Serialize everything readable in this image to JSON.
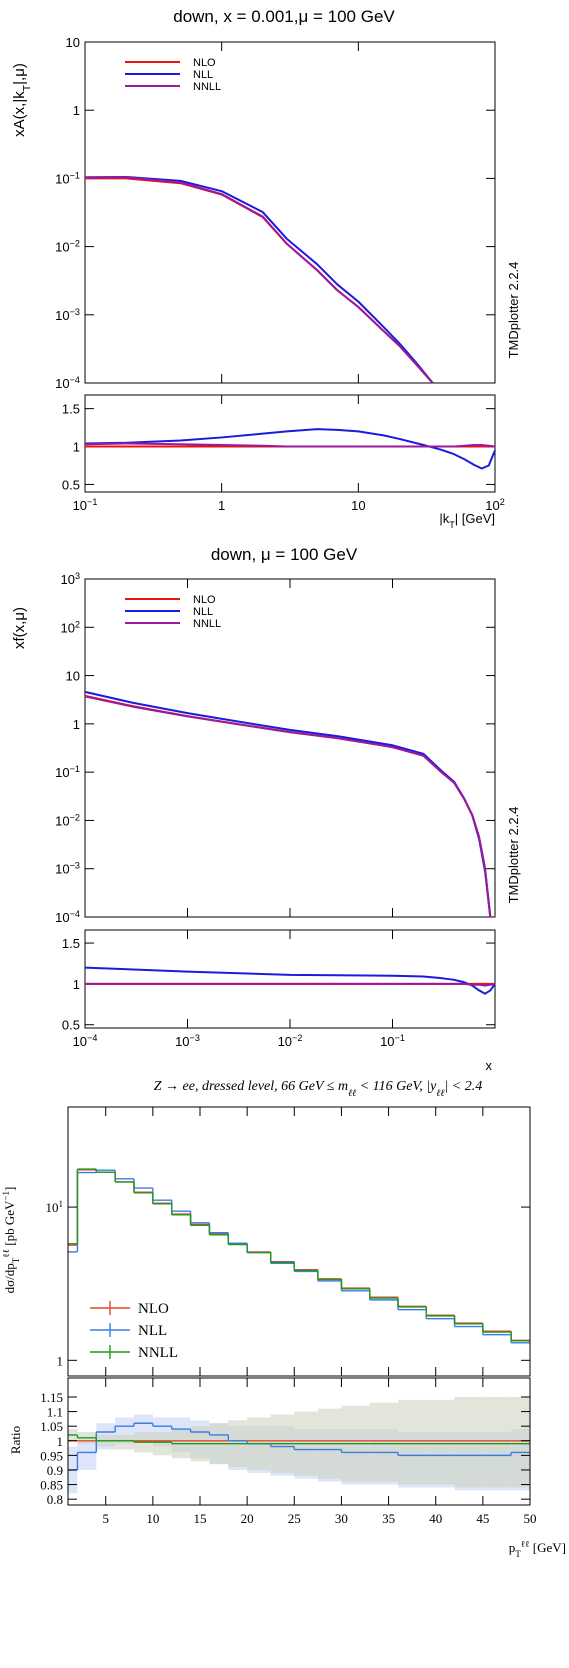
{
  "chart_data": [
    {
      "type": "line",
      "title": "down, x = 0.001,μ = 100 GeV",
      "y_label": [
        {
          "t": "xA(x,|k"
        },
        {
          "t": "T",
          "s": "sub"
        },
        {
          "t": "|,μ)"
        }
      ],
      "x_label": [
        {
          "t": "|k"
        },
        {
          "t": "T",
          "s": "sub"
        },
        {
          "t": "| [GeV]"
        }
      ],
      "side_text": "TMDplotter 2.2.4",
      "log_x": true,
      "log_y": true,
      "legend": "upper left",
      "xlim": [
        0.1,
        100
      ],
      "xticks": [
        {
          "value": 0.1,
          "label": "10",
          "exponent": "−1"
        },
        1,
        10,
        {
          "value": 100,
          "label": "10",
          "exponent": "2"
        }
      ],
      "ylim": [
        0.0001,
        10
      ],
      "yticks": [
        {
          "value": 0.0001,
          "label": "10",
          "exponent": "−4"
        },
        {
          "value": 0.001,
          "label": "10",
          "exponent": "−3"
        },
        {
          "value": 0.01,
          "label": "10",
          "exponent": "−2"
        },
        {
          "value": 0.1,
          "label": "10",
          "exponent": "−1"
        },
        1,
        10
      ],
      "x": [
        0.1,
        0.2,
        0.5,
        1,
        2,
        3,
        5,
        7,
        10,
        15,
        20,
        27,
        35
      ],
      "series": [
        {
          "name": "NLO",
          "color": "#ee1111",
          "values": [
            0.1,
            0.1,
            0.085,
            0.058,
            0.027,
            0.011,
            0.0045,
            0.0023,
            0.0013,
            0.0006,
            0.00035,
            0.00018,
            0.0001
          ]
        },
        {
          "name": "NLL",
          "color": "#1a1ae0",
          "values": [
            0.104,
            0.105,
            0.092,
            0.065,
            0.032,
            0.013,
            0.0055,
            0.0028,
            0.00156,
            0.00069,
            0.00038,
            0.00019,
            0.0001
          ]
        },
        {
          "name": "NNLL",
          "color": "#9b1a9b",
          "values": [
            0.103,
            0.104,
            0.087,
            0.059,
            0.0275,
            0.011,
            0.0045,
            0.0023,
            0.0013,
            0.0006,
            0.00035,
            0.00018,
            0.0001
          ]
        }
      ],
      "ratio": {
        "ylim": [
          0.4,
          1.68
        ],
        "yticks": [
          0.5,
          1,
          1.5
        ],
        "x": [
          0.1,
          0.2,
          0.5,
          1,
          2,
          3,
          5,
          7,
          10,
          15,
          20,
          30,
          40,
          50,
          60,
          70,
          80,
          90,
          100
        ],
        "series": [
          {
            "color": "#ee1111",
            "values": [
              1,
              1,
              1,
              1,
              1,
              1,
              1,
              1,
              1,
              1,
              1,
              1,
              1,
              1,
              1,
              1,
              1,
              1,
              1
            ]
          },
          {
            "color": "#1a1ae0",
            "values": [
              1.04,
              1.05,
              1.08,
              1.12,
              1.17,
              1.2,
              1.23,
              1.22,
              1.2,
              1.15,
              1.1,
              1.02,
              0.96,
              0.9,
              0.83,
              0.76,
              0.71,
              0.75,
              0.95
            ]
          },
          {
            "color": "#9b1a9b",
            "values": [
              1.03,
              1.04,
              1.03,
              1.02,
              1.01,
              1.0,
              1.0,
              1.0,
              1.0,
              1.0,
              1.0,
              1.0,
              1.0,
              1.0,
              1.01,
              1.02,
              1.02,
              1.01,
              1.0
            ]
          }
        ]
      }
    },
    {
      "type": "line",
      "title": "down, μ = 100 GeV",
      "y_label": [
        {
          "t": "xf(x,μ)"
        }
      ],
      "x_label": [
        {
          "t": "x"
        }
      ],
      "side_text": "TMDplotter 2.2.4",
      "log_x": true,
      "log_y": true,
      "legend": "upper left",
      "xlim": [
        0.0001,
        1
      ],
      "xticks": [
        {
          "value": 0.0001,
          "label": "10",
          "exponent": "−4"
        },
        {
          "value": 0.001,
          "label": "10",
          "exponent": "−3"
        },
        {
          "value": 0.01,
          "label": "10",
          "exponent": "−2"
        },
        {
          "value": 0.1,
          "label": "10",
          "exponent": "−1"
        }
      ],
      "ylim": [
        0.0001,
        1000
      ],
      "yticks": [
        {
          "value": 0.0001,
          "label": "10",
          "exponent": "−4"
        },
        {
          "value": 0.001,
          "label": "10",
          "exponent": "−3"
        },
        {
          "value": 0.01,
          "label": "10",
          "exponent": "−2"
        },
        {
          "value": 0.1,
          "label": "10",
          "exponent": "−1"
        },
        1,
        10,
        {
          "value": 100,
          "label": "10",
          "exponent": "2"
        },
        {
          "value": 1000,
          "label": "10",
          "exponent": "3"
        }
      ],
      "x": [
        0.0001,
        0.0003,
        0.001,
        0.003,
        0.01,
        0.03,
        0.1,
        0.2,
        0.3,
        0.4,
        0.5,
        0.6,
        0.7,
        0.8,
        0.9
      ],
      "series": [
        {
          "name": "NLO",
          "color": "#ee1111",
          "values": [
            3.8,
            2.3,
            1.45,
            1.0,
            0.68,
            0.5,
            0.33,
            0.22,
            0.1,
            0.06,
            0.028,
            0.013,
            0.0045,
            0.001,
            0.0001
          ]
        },
        {
          "name": "NLL",
          "color": "#1a1ae0",
          "values": [
            4.6,
            2.7,
            1.67,
            1.13,
            0.75,
            0.55,
            0.36,
            0.24,
            0.107,
            0.063,
            0.0286,
            0.0127,
            0.0041,
            0.00088,
            0.0001
          ]
        },
        {
          "name": "NNLL",
          "color": "#9b1a9b",
          "values": [
            3.7,
            2.25,
            1.43,
            0.99,
            0.67,
            0.5,
            0.33,
            0.22,
            0.1,
            0.06,
            0.028,
            0.013,
            0.0045,
            0.001,
            0.0001
          ]
        }
      ],
      "ratio": {
        "ylim": [
          0.46,
          1.66
        ],
        "yticks": [
          0.5,
          1,
          1.5
        ],
        "x": [
          0.0001,
          0.001,
          0.01,
          0.1,
          0.2,
          0.3,
          0.4,
          0.5,
          0.6,
          0.7,
          0.8,
          0.9,
          1
        ],
        "series": [
          {
            "color": "#ee1111",
            "values": [
              1,
              1,
              1,
              1,
              1,
              1,
              1,
              1,
              1,
              1,
              1,
              1,
              1
            ]
          },
          {
            "color": "#1a1ae0",
            "values": [
              1.2,
              1.15,
              1.11,
              1.1,
              1.09,
              1.07,
              1.05,
              1.02,
              0.98,
              0.92,
              0.88,
              0.92,
              1.0
            ]
          },
          {
            "color": "#9b1a9b",
            "values": [
              1,
              1,
              1,
              1,
              1,
              1,
              1,
              1,
              0.99,
              0.99,
              0.98,
              0.99,
              1.0
            ]
          }
        ]
      }
    },
    {
      "type": "histogram",
      "title": [
        {
          "t": "Z → ee, dressed level, 66 GeV ≤ m"
        },
        {
          "t": "ℓℓ",
          "s": "sub"
        },
        {
          "t": " < 116 GeV, |y"
        },
        {
          "t": "ℓℓ",
          "s": "sub"
        },
        {
          "t": "| < 2.4"
        }
      ],
      "y_label": [
        {
          "t": "dσ/dp"
        },
        {
          "t": "T",
          "s": "sub"
        },
        {
          "t": "ℓℓ",
          "s": "sup"
        },
        {
          "t": " [pb GeV"
        },
        {
          "t": "−1",
          "s": "sup"
        },
        {
          "t": "]"
        }
      ],
      "x_label": [
        {
          "t": "p"
        },
        {
          "t": "T",
          "s": "sub"
        },
        {
          "t": "ℓℓ",
          "s": "sup"
        },
        {
          "t": " [GeV]"
        }
      ],
      "log_x": false,
      "log_y": true,
      "legend": "lower left",
      "xlim": [
        1,
        50
      ],
      "xticks": [
        5,
        10,
        15,
        20,
        25,
        30,
        35,
        40,
        45,
        50
      ],
      "ylim": [
        0.79,
        45
      ],
      "yticks": [
        1,
        {
          "value": 10,
          "label": "10",
          "exponent": "1"
        }
      ],
      "bins": [
        1,
        2,
        4,
        6,
        8,
        10,
        12,
        14,
        16,
        18,
        20,
        22.5,
        25,
        27.5,
        30,
        33,
        36,
        39,
        42,
        45,
        48,
        50
      ],
      "series": [
        {
          "name": "NLO",
          "color": "#e8452c",
          "values": [
            5.65,
            17.5,
            16.9,
            14.6,
            12.5,
            10.6,
            9.0,
            7.7,
            6.7,
            5.8,
            5.1,
            4.4,
            3.9,
            3.4,
            2.96,
            2.58,
            2.25,
            1.97,
            1.75,
            1.55,
            1.35
          ]
        },
        {
          "name": "NLL",
          "color": "#3c7be6",
          "values": [
            5.1,
            16.8,
            17.4,
            15.3,
            13.3,
            11.1,
            9.4,
            7.9,
            6.8,
            5.8,
            5.05,
            4.3,
            3.8,
            3.3,
            2.84,
            2.48,
            2.14,
            1.87,
            1.66,
            1.47,
            1.3
          ]
        },
        {
          "name": "NNLL",
          "color": "#1e9a1e",
          "values": [
            5.76,
            17.7,
            16.9,
            14.6,
            12.4,
            10.5,
            8.9,
            7.6,
            6.6,
            5.7,
            5.05,
            4.36,
            3.86,
            3.37,
            2.93,
            2.55,
            2.23,
            1.95,
            1.73,
            1.53,
            1.34
          ]
        }
      ],
      "ratio": {
        "y_label": "Ratio",
        "ylim": [
          0.78,
          1.215
        ],
        "yticks": [
          0.8,
          0.85,
          0.9,
          0.95,
          1,
          1.05,
          1.1,
          1.15
        ],
        "series": [
          {
            "color": "#e8452c",
            "values": [
              1,
              1,
              1,
              1,
              1,
              1,
              1,
              1,
              1,
              1,
              1,
              1,
              1,
              1,
              1,
              1,
              1,
              1,
              1,
              1,
              1
            ]
          },
          {
            "color": "#3c7be6",
            "band_color": "#c6d6f4",
            "values": [
              0.9,
              0.96,
              1.03,
              1.05,
              1.06,
              1.05,
              1.04,
              1.03,
              1.02,
              1.0,
              0.99,
              0.98,
              0.97,
              0.97,
              0.96,
              0.96,
              0.95,
              0.95,
              0.95,
              0.95,
              0.96
            ],
            "lower": [
              0.82,
              0.9,
              0.97,
              0.99,
              1.0,
              0.98,
              0.96,
              0.94,
              0.92,
              0.9,
              0.89,
              0.88,
              0.87,
              0.86,
              0.85,
              0.85,
              0.84,
              0.84,
              0.83,
              0.83,
              0.83
            ],
            "upper": [
              0.98,
              1.0,
              1.06,
              1.08,
              1.09,
              1.08,
              1.08,
              1.07,
              1.06,
              1.05,
              1.05,
              1.05,
              1.04,
              1.04,
              1.04,
              1.04,
              1.03,
              1.03,
              1.03,
              1.03,
              1.04
            ]
          },
          {
            "color": "#1e9a1e",
            "band_color": "#cfd3c2",
            "values": [
              1.02,
              1.01,
              1.0,
              1.0,
              0.995,
              0.995,
              0.99,
              0.99,
              0.99,
              0.99,
              0.99,
              0.99,
              0.99,
              0.99,
              0.99,
              0.99,
              0.99,
              0.99,
              0.99,
              0.99,
              0.99
            ],
            "lower": [
              1.0,
              0.99,
              0.98,
              0.97,
              0.96,
              0.95,
              0.94,
              0.93,
              0.92,
              0.91,
              0.9,
              0.89,
              0.88,
              0.87,
              0.86,
              0.86,
              0.85,
              0.85,
              0.84,
              0.84,
              0.84
            ],
            "upper": [
              1.04,
              1.03,
              1.02,
              1.02,
              1.03,
              1.03,
              1.04,
              1.05,
              1.06,
              1.07,
              1.08,
              1.09,
              1.1,
              1.11,
              1.12,
              1.13,
              1.14,
              1.14,
              1.15,
              1.15,
              1.15
            ]
          }
        ]
      }
    }
  ]
}
